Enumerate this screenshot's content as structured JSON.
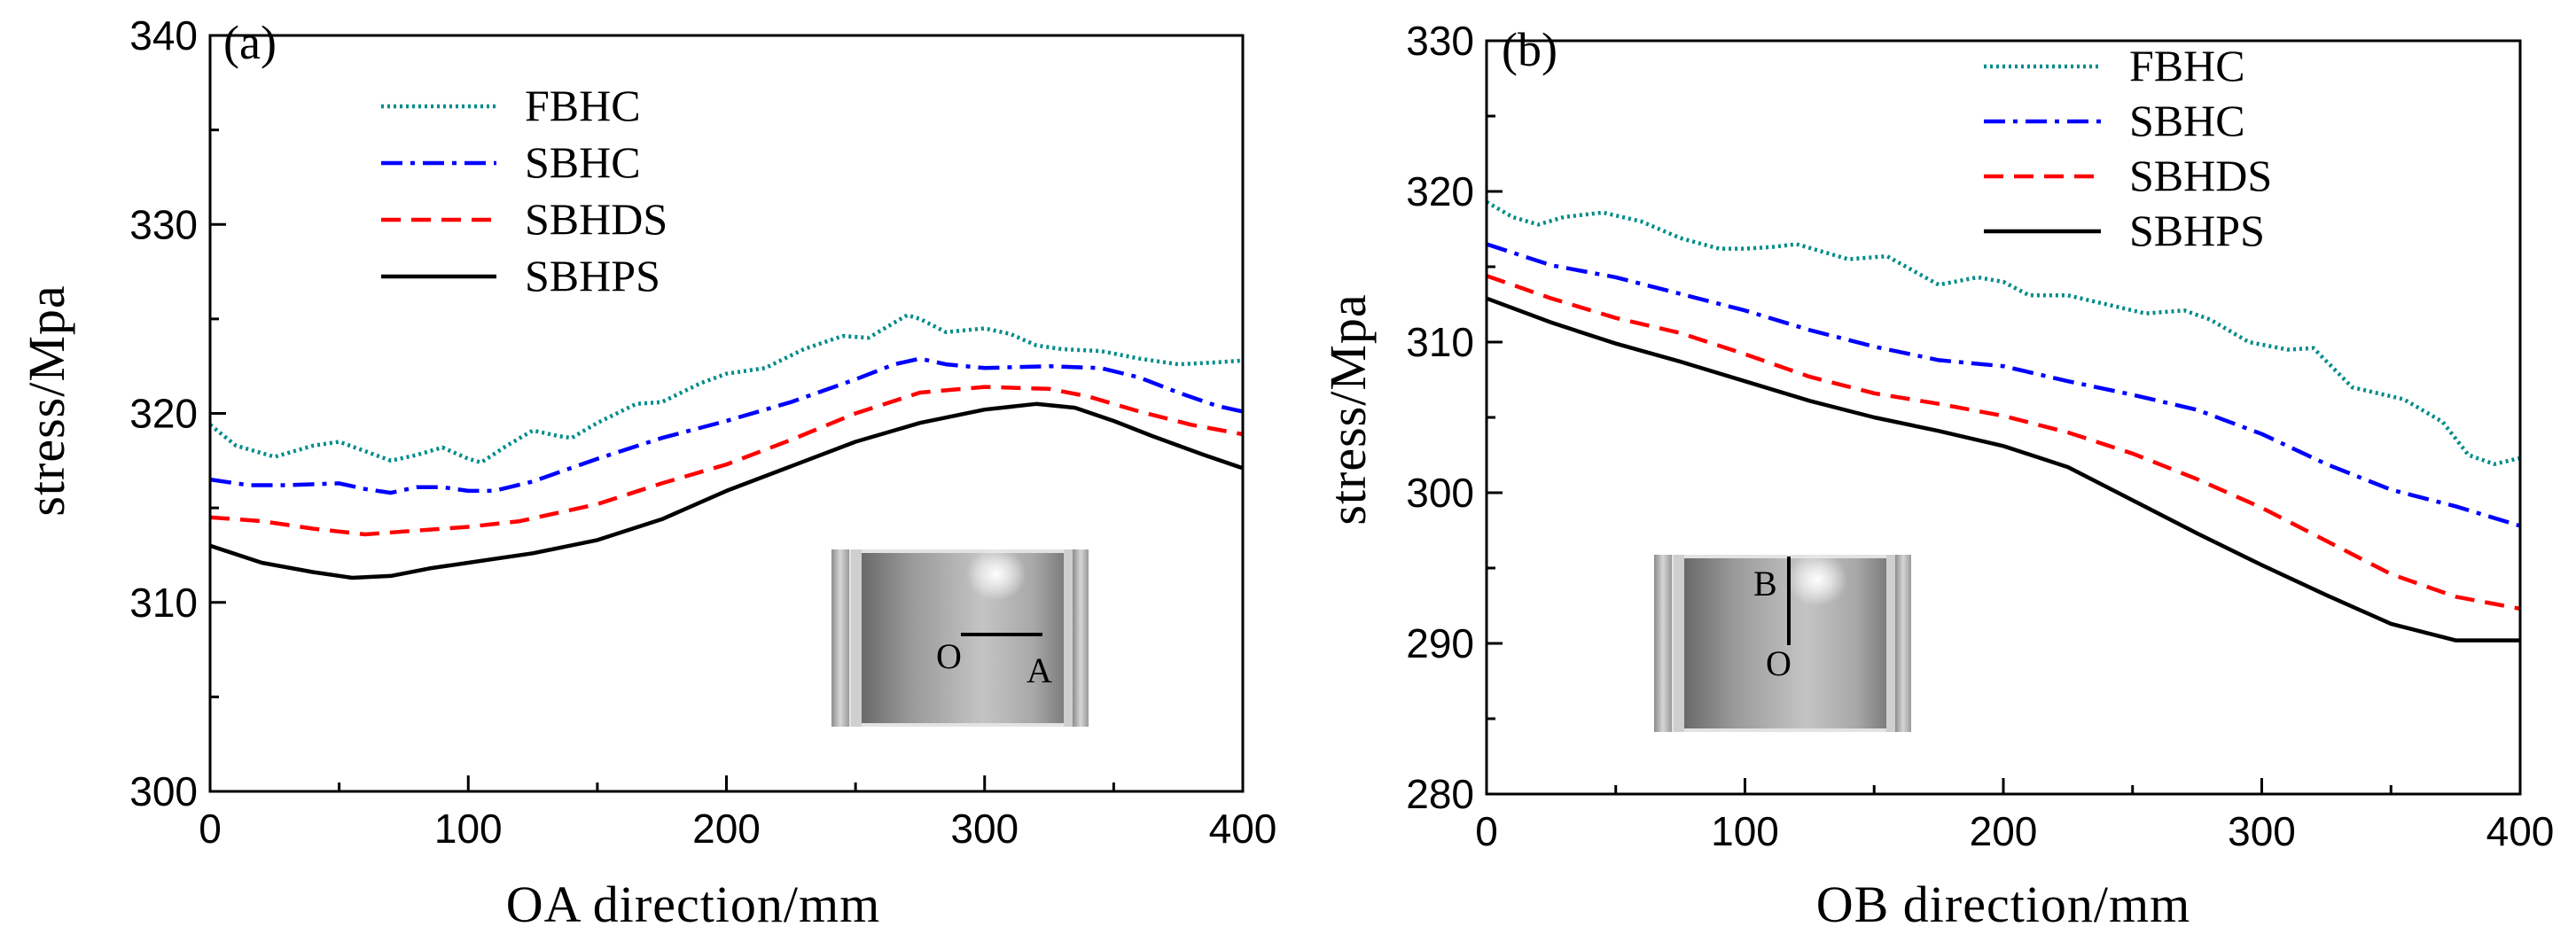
{
  "colors": {
    "FBHC": "#008b8b",
    "SBHC": "#0000ff",
    "SBHDS": "#ff0000",
    "SBHPS": "#000000"
  },
  "chart_data": [
    {
      "type": "line",
      "panel_label": "(a)",
      "xlabel": "OA direction/mm",
      "ylabel": "stress/Mpa",
      "xlim": [
        0,
        400
      ],
      "ylim": [
        300,
        340
      ],
      "xticks": [
        0,
        100,
        200,
        300,
        400
      ],
      "yticks": [
        300,
        310,
        320,
        330,
        340
      ],
      "legend_position": "top-left",
      "inset": {
        "description_labels": [
          "O",
          "A"
        ],
        "line": "horizontal"
      },
      "series": [
        {
          "name": "FBHC",
          "style": "dotted",
          "x": [
            0,
            10,
            25,
            40,
            50,
            60,
            70,
            80,
            90,
            100,
            105,
            115,
            125,
            135,
            140,
            150,
            165,
            175,
            190,
            200,
            215,
            230,
            245,
            255,
            270,
            275,
            285,
            300,
            310,
            320,
            330,
            345,
            360,
            375,
            390,
            400
          ],
          "y": [
            319.4,
            318.3,
            317.7,
            318.3,
            318.5,
            318.0,
            317.5,
            317.8,
            318.2,
            317.6,
            317.4,
            318.3,
            319.1,
            318.8,
            318.7,
            319.5,
            320.5,
            320.6,
            321.6,
            322.1,
            322.4,
            323.4,
            324.1,
            324.0,
            325.2,
            325.0,
            324.3,
            324.5,
            324.2,
            323.6,
            323.4,
            323.3,
            322.9,
            322.6,
            322.7,
            322.8
          ]
        },
        {
          "name": "SBHC",
          "style": "dashdot",
          "x": [
            0,
            15,
            30,
            50,
            60,
            70,
            80,
            90,
            100,
            110,
            125,
            150,
            175,
            200,
            225,
            250,
            265,
            275,
            285,
            300,
            325,
            345,
            360,
            375,
            390,
            400
          ],
          "y": [
            316.5,
            316.2,
            316.2,
            316.3,
            316.0,
            315.8,
            316.1,
            316.1,
            315.9,
            315.9,
            316.4,
            317.6,
            318.7,
            319.6,
            320.6,
            321.8,
            322.6,
            322.9,
            322.6,
            322.4,
            322.5,
            322.4,
            321.9,
            321.1,
            320.4,
            320.1
          ]
        },
        {
          "name": "SBHDS",
          "style": "dashed",
          "x": [
            0,
            20,
            40,
            60,
            80,
            100,
            120,
            150,
            175,
            200,
            225,
            250,
            275,
            300,
            325,
            340,
            360,
            380,
            400
          ],
          "y": [
            314.5,
            314.3,
            313.9,
            313.6,
            313.8,
            314.0,
            314.3,
            315.2,
            316.3,
            317.3,
            318.6,
            320.0,
            321.1,
            321.4,
            321.3,
            320.9,
            320.1,
            319.4,
            318.9
          ]
        },
        {
          "name": "SBHPS",
          "style": "solid",
          "x": [
            0,
            20,
            40,
            55,
            70,
            85,
            100,
            125,
            150,
            175,
            200,
            225,
            250,
            275,
            300,
            320,
            335,
            350,
            365,
            385,
            400
          ],
          "y": [
            313.0,
            312.1,
            311.6,
            311.3,
            311.4,
            311.8,
            312.1,
            312.6,
            313.3,
            314.4,
            315.9,
            317.2,
            318.5,
            319.5,
            320.2,
            320.5,
            320.3,
            319.6,
            318.8,
            317.8,
            317.1
          ]
        }
      ]
    },
    {
      "type": "line",
      "panel_label": "(b)",
      "xlabel": "OB direction/mm",
      "ylabel": "stress/Mpa",
      "xlim": [
        0,
        400
      ],
      "ylim": [
        280,
        330
      ],
      "xticks": [
        0,
        100,
        200,
        300,
        400
      ],
      "yticks": [
        280,
        290,
        300,
        310,
        320,
        330
      ],
      "legend_position": "top-right",
      "inset": {
        "description_labels": [
          "B",
          "O"
        ],
        "line": "vertical"
      },
      "series": [
        {
          "name": "FBHC",
          "style": "dotted",
          "x": [
            0,
            10,
            20,
            30,
            45,
            60,
            75,
            90,
            100,
            110,
            120,
            140,
            155,
            175,
            190,
            200,
            210,
            225,
            240,
            255,
            270,
            280,
            295,
            310,
            320,
            335,
            355,
            370,
            380,
            390,
            400
          ],
          "y": [
            319.3,
            318.3,
            317.8,
            318.3,
            318.6,
            318.0,
            316.9,
            316.2,
            316.2,
            316.3,
            316.5,
            315.5,
            315.7,
            313.8,
            314.3,
            314.0,
            313.1,
            313.1,
            312.5,
            311.9,
            312.1,
            311.5,
            310.0,
            309.5,
            309.6,
            307.0,
            306.2,
            304.7,
            302.5,
            301.9,
            302.3
          ]
        },
        {
          "name": "SBHC",
          "style": "dashdot",
          "x": [
            0,
            25,
            50,
            75,
            100,
            125,
            150,
            175,
            200,
            225,
            250,
            275,
            300,
            325,
            350,
            375,
            400
          ],
          "y": [
            316.5,
            315.1,
            314.3,
            313.2,
            312.1,
            310.8,
            309.7,
            308.8,
            308.4,
            307.4,
            306.5,
            305.5,
            303.9,
            301.9,
            300.2,
            299.1,
            297.8
          ]
        },
        {
          "name": "SBHDS",
          "style": "dashed",
          "x": [
            0,
            25,
            50,
            75,
            100,
            125,
            150,
            175,
            200,
            225,
            250,
            275,
            300,
            325,
            350,
            375,
            400
          ],
          "y": [
            314.4,
            312.9,
            311.6,
            310.6,
            309.2,
            307.7,
            306.6,
            305.9,
            305.1,
            304.0,
            302.6,
            300.9,
            299.0,
            296.8,
            294.6,
            293.1,
            292.3
          ]
        },
        {
          "name": "SBHPS",
          "style": "solid",
          "x": [
            0,
            25,
            50,
            75,
            100,
            125,
            150,
            175,
            200,
            225,
            250,
            275,
            300,
            325,
            350,
            375,
            400
          ],
          "y": [
            312.9,
            311.3,
            309.9,
            308.7,
            307.4,
            306.1,
            305.0,
            304.1,
            303.1,
            301.7,
            299.5,
            297.3,
            295.2,
            293.2,
            291.3,
            290.2,
            290.2
          ]
        }
      ]
    }
  ]
}
